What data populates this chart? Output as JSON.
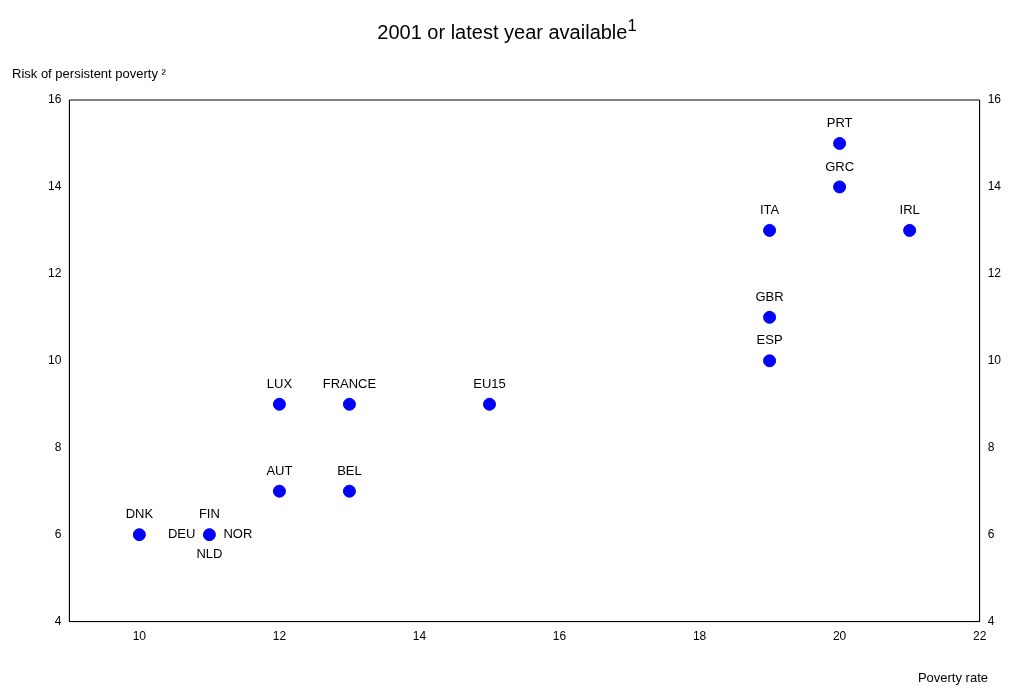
{
  "chart_data": {
    "type": "scatter",
    "title": "2001 or latest year available$^{1}$",
    "ylabel": "Risk of persistent poverty ²",
    "xlabel": "Poverty rate",
    "series": [
      {
        "color": "#0000ff",
        "x": [
          10,
          11,
          12,
          13,
          15,
          12,
          13,
          19,
          19,
          19,
          20,
          20,
          21
        ],
        "values": [
          6,
          6,
          9,
          9,
          9,
          7,
          7,
          13,
          11,
          10,
          15,
          14,
          13
        ]
      }
    ],
    "annotations": [
      {
        "text": "DNK",
        "x": 10,
        "y": 6
      },
      {
        "text": "FIN",
        "x": 11,
        "y": 6
      },
      {
        "text": "DEU",
        "x": 11,
        "y": 6
      },
      {
        "text": "NLD",
        "x": 11,
        "y": 6
      },
      {
        "text": "NOR",
        "x": 11,
        "y": 6
      },
      {
        "text": "LUX",
        "x": 12,
        "y": 9
      },
      {
        "text": "FRANCE",
        "x": 13,
        "y": 9
      },
      {
        "text": "EU15",
        "x": 15,
        "y": 9
      },
      {
        "text": "AUT",
        "x": 12,
        "y": 7
      },
      {
        "text": "BEL",
        "x": 13,
        "y": 7
      },
      {
        "text": "ITA",
        "x": 19,
        "y": 13
      },
      {
        "text": "GBR",
        "x": 19,
        "y": 11
      },
      {
        "text": "ESP",
        "x": 19,
        "y": 10
      },
      {
        "text": "PRT",
        "x": 20,
        "y": 15
      },
      {
        "text": "GRC",
        "x": 20,
        "y": 14
      },
      {
        "text": "IRL",
        "x": 21,
        "y": 13
      }
    ],
    "xlim": [
      9,
      22
    ],
    "xticks": [
      10,
      12,
      14,
      16,
      18,
      20,
      22
    ],
    "ylim": [
      4,
      16
    ],
    "yticks": [
      4,
      6,
      8,
      10,
      12,
      14,
      16
    ],
    "y2lim": [
      4,
      16
    ],
    "y2ticks": [
      4,
      6,
      8,
      10,
      12,
      14,
      16
    ],
    "grid": false,
    "legend": false,
    "marker": "circle"
  }
}
